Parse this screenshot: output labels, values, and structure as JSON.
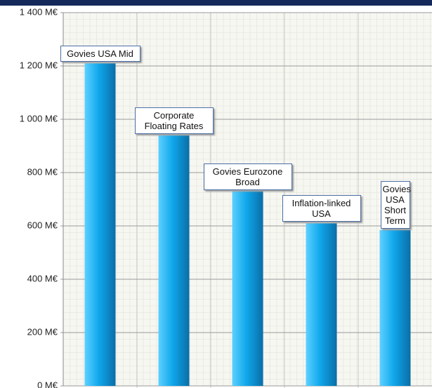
{
  "chart_data": {
    "type": "bar",
    "categories": [
      "Govies USA Mid",
      "Corporate Floating Rates",
      "Govies Eurozone Broad",
      "Inflation-linked USA",
      "Govies USA Short Term"
    ],
    "values": [
      1210,
      940,
      730,
      610,
      585
    ],
    "color": "#1aa0e0",
    "ylim": [
      0,
      1400
    ],
    "yticks": [
      {
        "value": 0,
        "label": "0 M€"
      },
      {
        "value": 200,
        "label": "200 M€"
      },
      {
        "value": 400,
        "label": "400 M€"
      },
      {
        "value": 600,
        "label": "600 M€"
      },
      {
        "value": 800,
        "label": "800 M€"
      },
      {
        "value": 1000,
        "label": "1 000 M€"
      },
      {
        "value": 1200,
        "label": "1 200 M€"
      },
      {
        "value": 1400,
        "label": "1 400 M€"
      }
    ],
    "grid": true
  }
}
